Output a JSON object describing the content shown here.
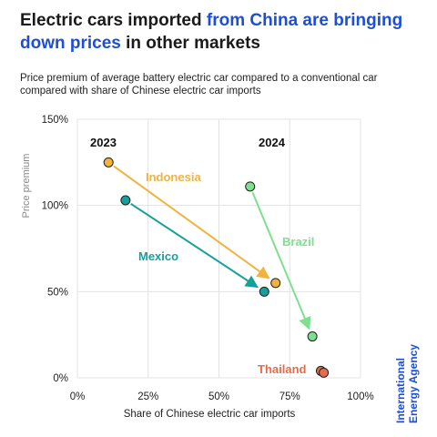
{
  "title": {
    "part1": "Electric cars imported ",
    "highlight": "from China are bringing down prices",
    "part2": " in other markets"
  },
  "subtitle": "Price premium of average battery electric car compared to a conventional car compared with share of Chinese electric car imports",
  "source_logo": "International Energy Agency",
  "colors": {
    "accent": "#1d4ed8",
    "grid": "#e3e3e3"
  },
  "chart_data": {
    "type": "scatter",
    "title": "Electric cars imported from China are bringing down prices in other markets",
    "xlabel": "Share of Chinese electric car imports",
    "ylabel": "Price premium",
    "xlim": [
      0,
      100
    ],
    "ylim": [
      0,
      150
    ],
    "x_ticks": [
      "0%",
      "25%",
      "50%",
      "75%",
      "100%"
    ],
    "y_ticks": [
      "0%",
      "50%",
      "100%",
      "150%"
    ],
    "grid": true,
    "annotations": [
      "2023",
      "2024"
    ],
    "series": [
      {
        "name": "Indonesia",
        "color": "#f0b33e",
        "from": {
          "x": 11,
          "y": 125
        },
        "to": {
          "x": 70,
          "y": 55
        }
      },
      {
        "name": "Mexico",
        "color": "#17a09a",
        "from": {
          "x": 17,
          "y": 103
        },
        "to": {
          "x": 66,
          "y": 50
        }
      },
      {
        "name": "Brazil",
        "color": "#7ee08f",
        "from": {
          "x": 61,
          "y": 111
        },
        "to": {
          "x": 83,
          "y": 24
        }
      },
      {
        "name": "Thailand",
        "color": "#e86a4a",
        "from": {
          "x": 86,
          "y": 4
        },
        "to": {
          "x": 87,
          "y": 3
        }
      }
    ]
  }
}
